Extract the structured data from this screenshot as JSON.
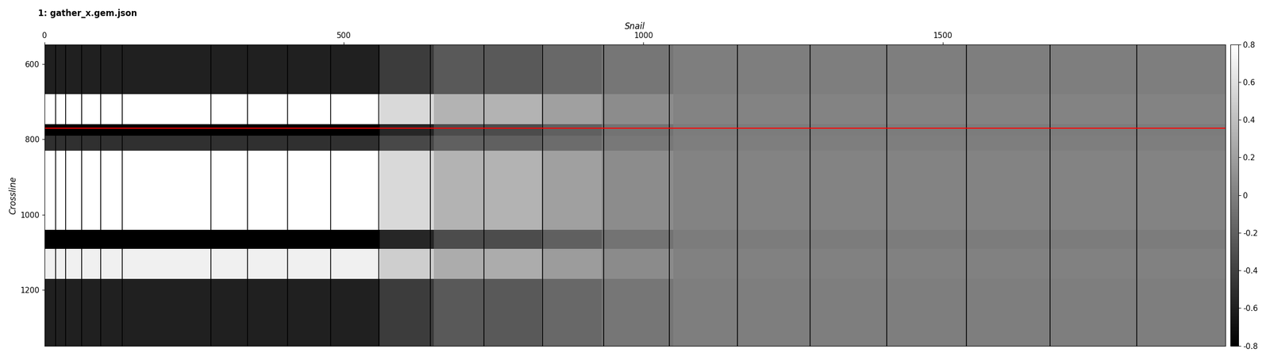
{
  "chart_data": {
    "type": "heatmap",
    "title": "1: gather_x.gem.json",
    "x_label": "Snail",
    "y_label": "Crossline",
    "xlim": [
      0,
      1972
    ],
    "ylim": [
      1348,
      548
    ],
    "xticks": [
      0,
      500,
      1000,
      1500
    ],
    "yticks": [
      600,
      800,
      1000,
      1200
    ],
    "x_edges": [
      0,
      560,
      650,
      830,
      930,
      1050,
      1972
    ],
    "y_edges": [
      548,
      680,
      760,
      790,
      830,
      1040,
      1090,
      1170,
      1348
    ],
    "cells": [
      [
        -0.6,
        -0.42,
        -0.24,
        -0.15,
        -0.06,
        -0.01
      ],
      [
        0.8,
        0.56,
        0.32,
        0.2,
        0.08,
        0.02
      ],
      [
        -0.8,
        -0.56,
        -0.32,
        -0.2,
        -0.08,
        -0.02
      ],
      [
        -0.5,
        -0.35,
        -0.2,
        -0.12,
        -0.05,
        -0.01
      ],
      [
        0.8,
        0.56,
        0.32,
        0.2,
        0.08,
        0.02
      ],
      [
        -0.8,
        -0.56,
        -0.32,
        -0.2,
        -0.08,
        -0.02
      ],
      [
        0.7,
        0.49,
        0.28,
        0.18,
        0.07,
        0.01
      ],
      [
        -0.6,
        -0.42,
        -0.24,
        -0.15,
        -0.06,
        -0.01
      ]
    ],
    "colorbar": {
      "range": [
        -0.8,
        0.8
      ],
      "ticks": [
        -0.8,
        -0.6,
        -0.4,
        -0.2,
        0,
        0.2,
        0.4,
        0.6,
        0.8
      ]
    },
    "boundaries": [
      19,
      35,
      62,
      94,
      130,
      278,
      339,
      406,
      478,
      558,
      644,
      734,
      832,
      934,
      1043,
      1157,
      1278,
      1406,
      1539,
      1679,
      1824
    ],
    "hline": 770
  }
}
